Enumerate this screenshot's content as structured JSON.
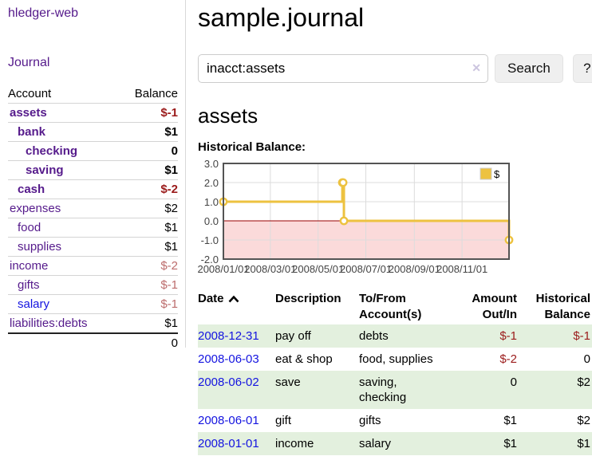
{
  "app": {
    "title": "hledger-web"
  },
  "nav": {
    "journal": "Journal"
  },
  "sidebar": {
    "header": {
      "account": "Account",
      "balance": "Balance"
    },
    "accounts": [
      {
        "name": "assets",
        "indent": 1,
        "bold": true,
        "balance": "$-1",
        "balance_class": "neg-strong"
      },
      {
        "name": "bank",
        "indent": 2,
        "bold": true,
        "balance": "$1",
        "balance_class": ""
      },
      {
        "name": "checking",
        "indent": 3,
        "bold": true,
        "balance": "0",
        "balance_class": ""
      },
      {
        "name": "saving",
        "indent": 3,
        "bold": true,
        "balance": "$1",
        "balance_class": ""
      },
      {
        "name": "cash",
        "indent": 2,
        "bold": true,
        "balance": "$-2",
        "balance_class": "neg-strong"
      },
      {
        "name": "expenses",
        "indent": 1,
        "bold": false,
        "balance": "$2",
        "balance_class": ""
      },
      {
        "name": "food",
        "indent": 2,
        "bold": false,
        "balance": "$1",
        "balance_class": ""
      },
      {
        "name": "supplies",
        "indent": 2,
        "bold": false,
        "balance": "$1",
        "balance_class": ""
      },
      {
        "name": "income",
        "indent": 1,
        "bold": false,
        "balance": "$-2",
        "balance_class": "neg-muted"
      },
      {
        "name": "gifts",
        "indent": 2,
        "bold": false,
        "balance": "$-1",
        "balance_class": "neg-muted"
      },
      {
        "name": "salary",
        "indent": 2,
        "bold": false,
        "balance": "$-1",
        "balance_class": "neg-muted",
        "blue": true
      },
      {
        "name": "liabilities:debts",
        "indent": 1,
        "bold": false,
        "balance": "$1",
        "balance_class": ""
      }
    ],
    "total": "0"
  },
  "page": {
    "title": "sample.journal"
  },
  "search": {
    "value": "inacct:assets",
    "clear_glyph": "✕",
    "search_label": "Search",
    "help_label": "?"
  },
  "account_view": {
    "heading": "assets",
    "chart_label": "Historical Balance:"
  },
  "chart_data": {
    "type": "line",
    "step": true,
    "title": "Historical Balance",
    "series": [
      {
        "name": "$",
        "color": "#edc240",
        "points": [
          [
            "2008-01-01",
            1
          ],
          [
            "2008-06-01",
            2
          ],
          [
            "2008-06-02",
            2
          ],
          [
            "2008-06-03",
            0
          ],
          [
            "2008-12-31",
            -1
          ]
        ]
      }
    ],
    "x_range": [
      "2008-01-01",
      "2008-12-31"
    ],
    "x_ticks": [
      {
        "label": "2008/01/01",
        "date": "2008-01-01"
      },
      {
        "label": "2008/03/01",
        "date": "2008-03-01"
      },
      {
        "label": "2008/05/01",
        "date": "2008-05-01"
      },
      {
        "label": "2008/07/01",
        "date": "2008-07-01"
      },
      {
        "label": "2008/09/01",
        "date": "2008-09-01"
      },
      {
        "label": "2008/11/01",
        "date": "2008-11-01"
      }
    ],
    "y_ticks": [
      3,
      2,
      1,
      0,
      -1,
      -2
    ],
    "ylim": [
      -2,
      3
    ],
    "legend": {
      "label": "$",
      "position": "top-right"
    },
    "grid": true,
    "negative_region": true
  },
  "register": {
    "columns": [
      {
        "label": "Date",
        "align": "left",
        "sortable": true,
        "sort_icon": "chevron-up"
      },
      {
        "label": "Description",
        "align": "left"
      },
      {
        "label": "To/From Account(s)",
        "align": "left"
      },
      {
        "label": "Amount Out/In",
        "align": "right"
      },
      {
        "label": "Historical Balance",
        "align": "right"
      }
    ],
    "rows": [
      {
        "date": "2008-12-31",
        "description": "pay off",
        "accounts": "debts",
        "amount": "$-1",
        "amountNeg": true,
        "balance": "$-1",
        "balanceNeg": true,
        "stripe": true
      },
      {
        "date": "2008-06-03",
        "description": "eat & shop",
        "accounts": "food, supplies",
        "amount": "$-2",
        "amountNeg": true,
        "balance": "0",
        "balanceNeg": false,
        "stripe": false
      },
      {
        "date": "2008-06-02",
        "description": "save",
        "accounts": "saving,\nchecking",
        "amount": "0",
        "amountNeg": false,
        "balance": "$2",
        "balanceNeg": false,
        "stripe": true
      },
      {
        "date": "2008-06-01",
        "description": "gift",
        "accounts": "gifts",
        "amount": "$1",
        "amountNeg": false,
        "balance": "$2",
        "balanceNeg": false,
        "stripe": false
      },
      {
        "date": "2008-01-01",
        "description": "income",
        "accounts": "salary",
        "amount": "$1",
        "amountNeg": false,
        "balance": "$1",
        "balanceNeg": false,
        "stripe": true
      }
    ]
  },
  "colors": {
    "purple": "#551a8b",
    "blue": "#1414e0",
    "negStrong": "#9b1b1b",
    "negMuted": "#bc6c6c",
    "stripe": "#e3f0de",
    "chartYellow": "#edc240",
    "chartPink": "#fbdada",
    "chartZero": "#990000",
    "chartBorder": "#545454",
    "chartGrid": "#dcdcdc",
    "tickText": "#444444"
  }
}
